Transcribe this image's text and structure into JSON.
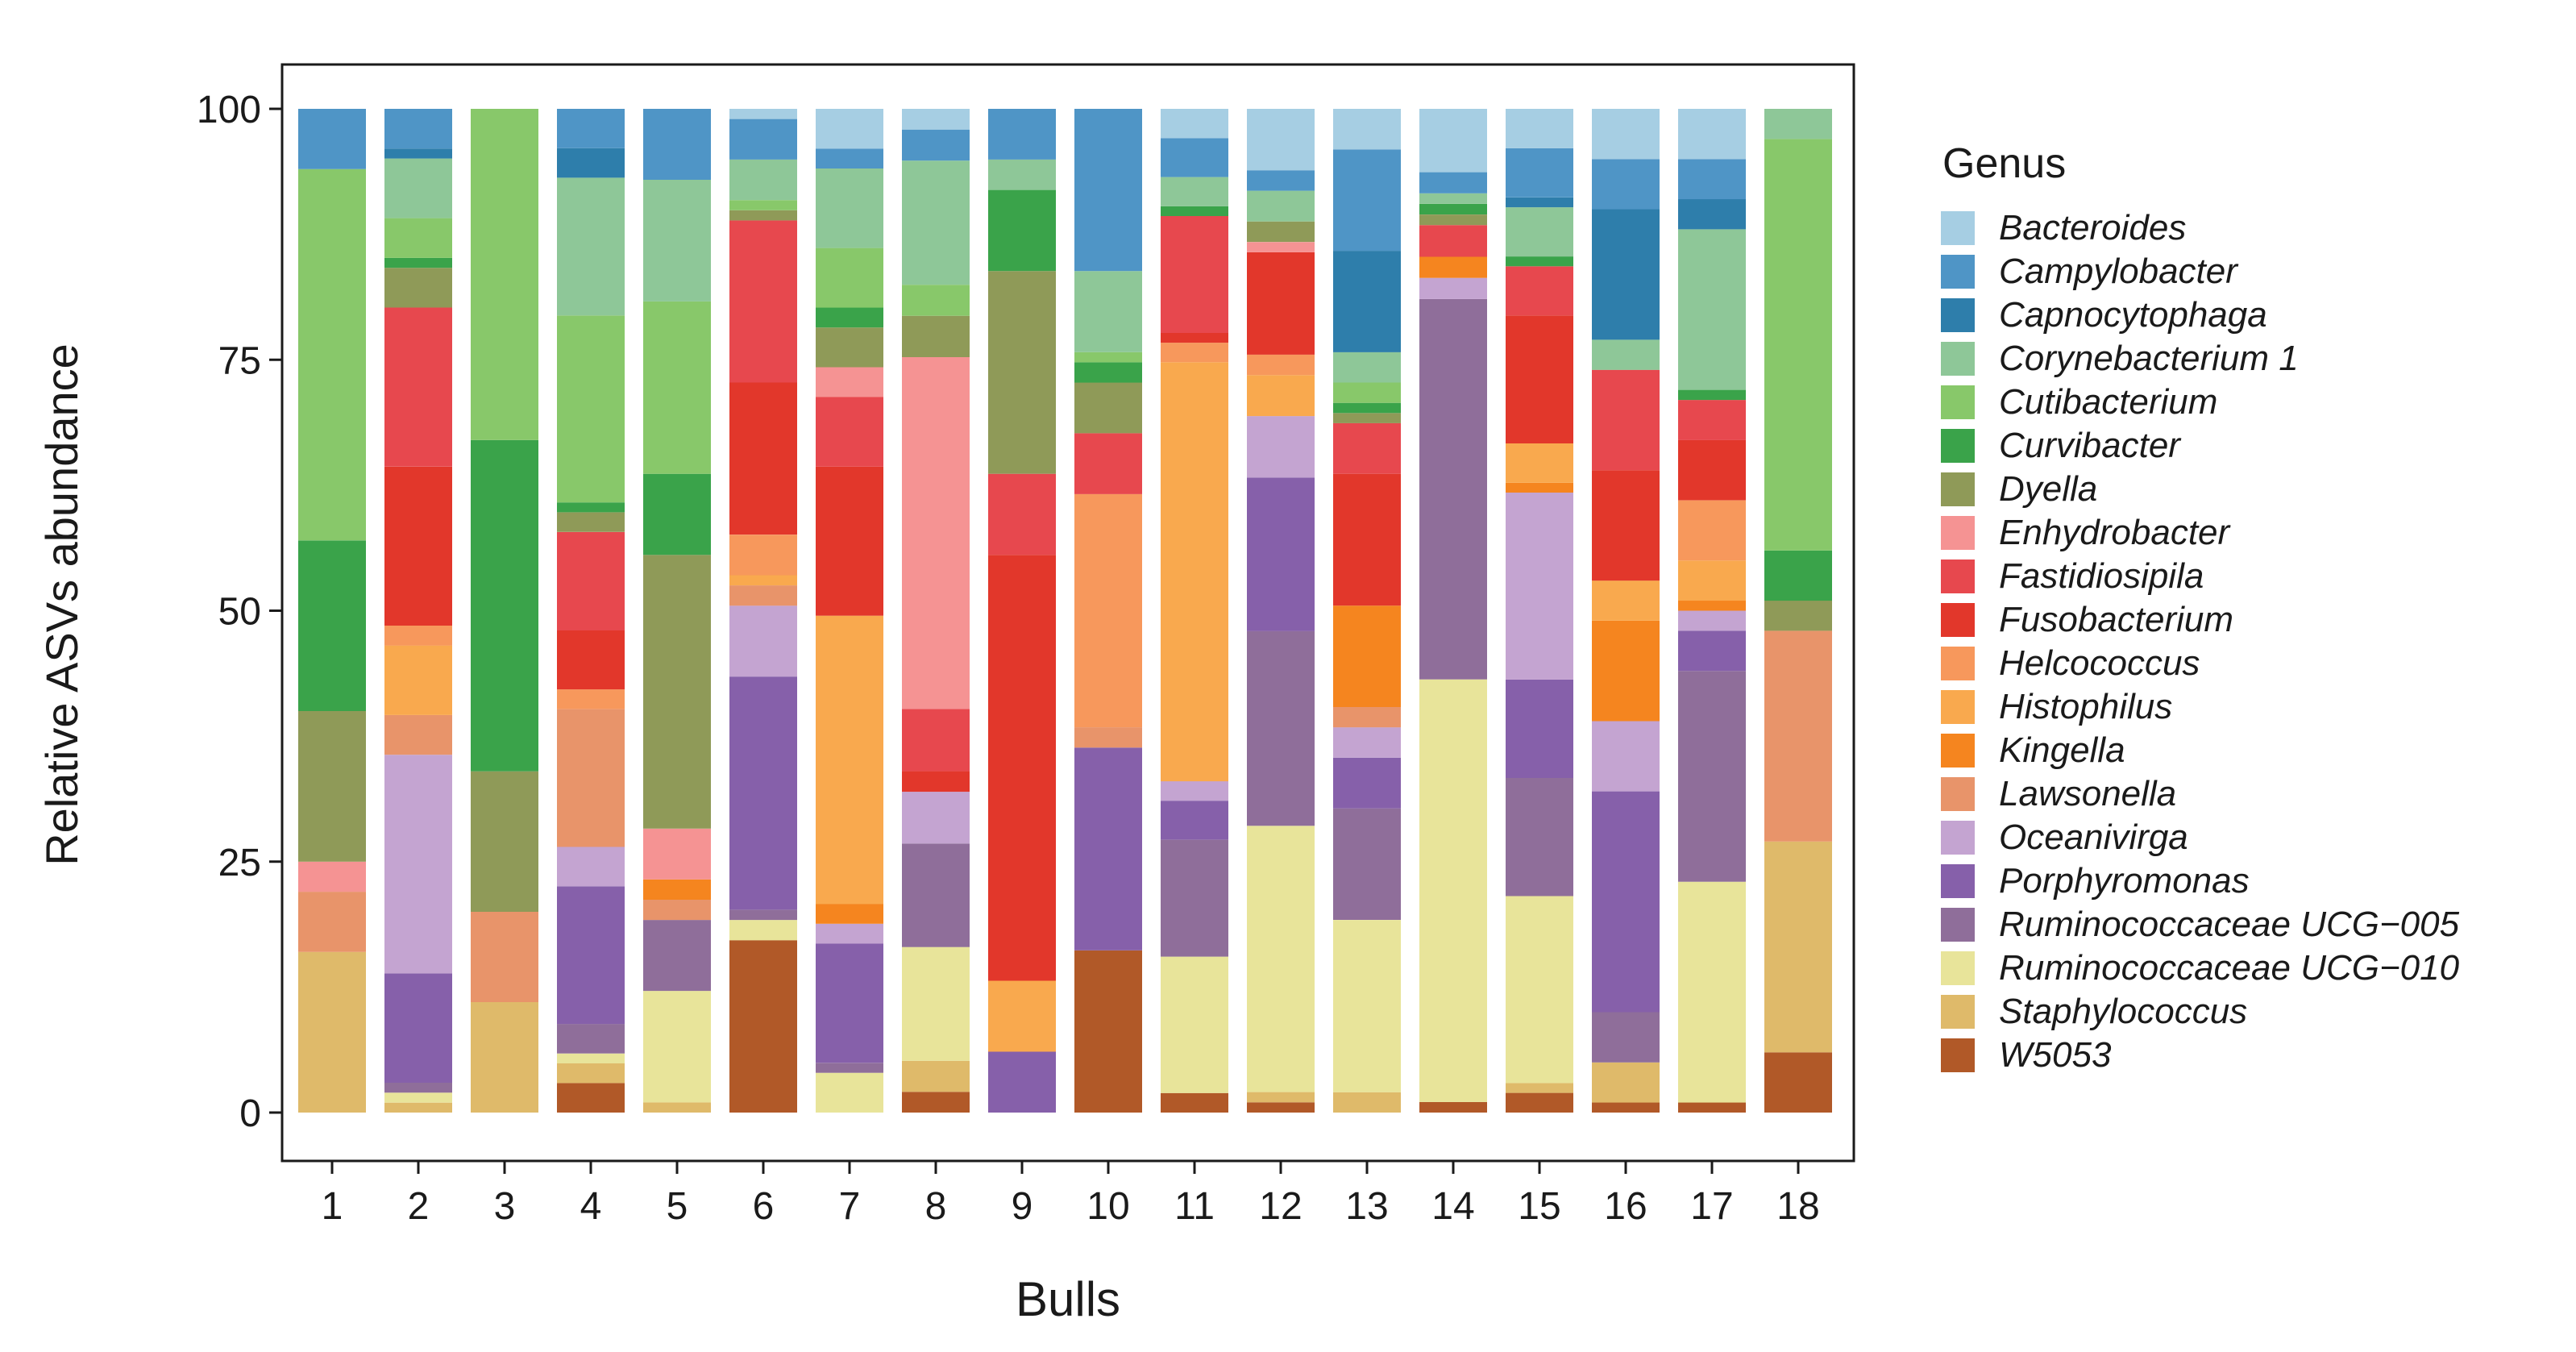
{
  "chart_data": {
    "type": "bar",
    "stacked": true,
    "title": "",
    "xlabel": "Bulls",
    "ylabel": "Relative ASVs abundance",
    "ylim": [
      0,
      100
    ],
    "yticks": [
      0,
      25,
      50,
      75,
      100
    ],
    "grid": false,
    "legend_title": "Genus",
    "legend_position": "right",
    "categories": [
      "1",
      "2",
      "3",
      "4",
      "5",
      "6",
      "7",
      "8",
      "9",
      "10",
      "11",
      "12",
      "13",
      "14",
      "15",
      "16",
      "17",
      "18"
    ],
    "genera": [
      {
        "name": "Bacteroides",
        "color": "#a6cee3"
      },
      {
        "name": "Campylobacter",
        "color": "#4f95c6"
      },
      {
        "name": "Capnocytophaga",
        "color": "#2e7eab"
      },
      {
        "name": "Corynebacterium 1",
        "color": "#8ec798"
      },
      {
        "name": "Cutibacterium",
        "color": "#88c86a"
      },
      {
        "name": "Curvibacter",
        "color": "#3aa34a"
      },
      {
        "name": "Dyella",
        "color": "#8f9a58"
      },
      {
        "name": "Enhydrobacter",
        "color": "#f59393"
      },
      {
        "name": "Fastidiosipila",
        "color": "#e7484e"
      },
      {
        "name": "Fusobacterium",
        "color": "#e2372b"
      },
      {
        "name": "Helcococcus",
        "color": "#f7985c"
      },
      {
        "name": "Histophilus",
        "color": "#f9a94e"
      },
      {
        "name": "Kingella",
        "color": "#f5851f"
      },
      {
        "name": "Lawsonella",
        "color": "#e8946a"
      },
      {
        "name": "Oceanivirga",
        "color": "#c4a4d1"
      },
      {
        "name": "Porphyromonas",
        "color": "#8660aa"
      },
      {
        "name": "Ruminococcaceae UCG−005",
        "color": "#8f6e9a"
      },
      {
        "name": "Ruminococcaceae UCG−010",
        "color": "#e8e49a"
      },
      {
        "name": "Staphylococcus",
        "color": "#dfba6a"
      },
      {
        "name": "W5053",
        "color": "#b15928"
      }
    ],
    "series": [
      {
        "name": "W5053",
        "values": [
          0,
          0,
          0,
          3,
          0,
          17,
          0,
          2,
          0,
          16,
          2,
          1,
          0,
          1,
          2,
          1,
          1,
          6
        ]
      },
      {
        "name": "Staphylococcus",
        "values": [
          16,
          1,
          11,
          2,
          1,
          0,
          0,
          3,
          0,
          0,
          0,
          1,
          2,
          0,
          1,
          4,
          0,
          21
        ]
      },
      {
        "name": "Ruminococcaceae UCG−010",
        "values": [
          0,
          1,
          0,
          1,
          11,
          2,
          4,
          11,
          0,
          0,
          14,
          26,
          17,
          40,
          19,
          0,
          22,
          0
        ]
      },
      {
        "name": "Ruminococcaceae UCG−005",
        "values": [
          0,
          1,
          0,
          3,
          7,
          1,
          1,
          10,
          0,
          0,
          12,
          19,
          11,
          36,
          12,
          5,
          21,
          0
        ]
      },
      {
        "name": "Porphyromonas",
        "values": [
          0,
          11,
          0,
          14,
          0,
          23,
          12,
          0,
          6,
          20,
          4,
          15,
          5,
          0,
          10,
          22,
          4,
          0
        ]
      },
      {
        "name": "Oceanivirga",
        "values": [
          0,
          22,
          0,
          4,
          0,
          7,
          2,
          5,
          0,
          0,
          2,
          6,
          3,
          2,
          19,
          7,
          2,
          0
        ]
      },
      {
        "name": "Lawsonella",
        "values": [
          6,
          4,
          9,
          14,
          2,
          2,
          0,
          0,
          0,
          2,
          0,
          0,
          2,
          0,
          0,
          0,
          0,
          21
        ]
      },
      {
        "name": "Kingella",
        "values": [
          0,
          0,
          0,
          0,
          2,
          0,
          2,
          0,
          0,
          0,
          0,
          0,
          10,
          2,
          1,
          10,
          1,
          0
        ]
      },
      {
        "name": "Histophilus",
        "values": [
          0,
          7,
          0,
          0,
          0,
          1,
          29,
          0,
          7,
          0,
          43,
          4,
          0,
          0,
          4,
          4,
          4,
          0
        ]
      },
      {
        "name": "Helcococcus",
        "values": [
          0,
          2,
          0,
          2,
          0,
          4,
          0,
          0,
          0,
          23,
          2,
          2,
          0,
          0,
          0,
          0,
          6,
          0
        ]
      },
      {
        "name": "Fusobacterium",
        "values": [
          0,
          16,
          0,
          6,
          0,
          15,
          15,
          2,
          42,
          0,
          1,
          10,
          13,
          0,
          13,
          11,
          6,
          0
        ]
      },
      {
        "name": "Fastidiosipila",
        "values": [
          0,
          16,
          0,
          10,
          0,
          16,
          7,
          6,
          8,
          6,
          12,
          0,
          5,
          3,
          5,
          10,
          4,
          0
        ]
      },
      {
        "name": "Enhydrobacter",
        "values": [
          3,
          0,
          0,
          0,
          5,
          0,
          3,
          34,
          0,
          0,
          0,
          1,
          0,
          0,
          0,
          0,
          0,
          0
        ]
      },
      {
        "name": "Dyella",
        "values": [
          15,
          4,
          14,
          2,
          27,
          1,
          4,
          4,
          20,
          5,
          0,
          2,
          1,
          1,
          0,
          0,
          0,
          3
        ]
      },
      {
        "name": "Curvibacter",
        "values": [
          17,
          1,
          33,
          1,
          8,
          0,
          2,
          0,
          8,
          2,
          1,
          0,
          1,
          1,
          1,
          0,
          1,
          5
        ]
      },
      {
        "name": "Cutibacterium",
        "values": [
          37,
          4,
          33,
          19,
          17,
          1,
          6,
          3,
          0,
          1,
          0,
          0,
          2,
          0,
          0,
          0,
          0,
          41
        ]
      },
      {
        "name": "Corynebacterium 1",
        "values": [
          0,
          6,
          0,
          14,
          12,
          4,
          8,
          12,
          3,
          8,
          3,
          3,
          3,
          1,
          5,
          3,
          16,
          3
        ]
      },
      {
        "name": "Capnocytophaga",
        "values": [
          0,
          1,
          0,
          3,
          0,
          0,
          0,
          0,
          0,
          0,
          0,
          0,
          10,
          0,
          1,
          13,
          3,
          0
        ]
      },
      {
        "name": "Campylobacter",
        "values": [
          6,
          4,
          0,
          4,
          7,
          4,
          2,
          3,
          5,
          16,
          4,
          2,
          10,
          2,
          5,
          5,
          4,
          0
        ]
      },
      {
        "name": "Bacteroides",
        "values": [
          0,
          0,
          0,
          0,
          0,
          1,
          4,
          2,
          0,
          0,
          3,
          6,
          4,
          6,
          4,
          5,
          5,
          0
        ]
      }
    ]
  }
}
